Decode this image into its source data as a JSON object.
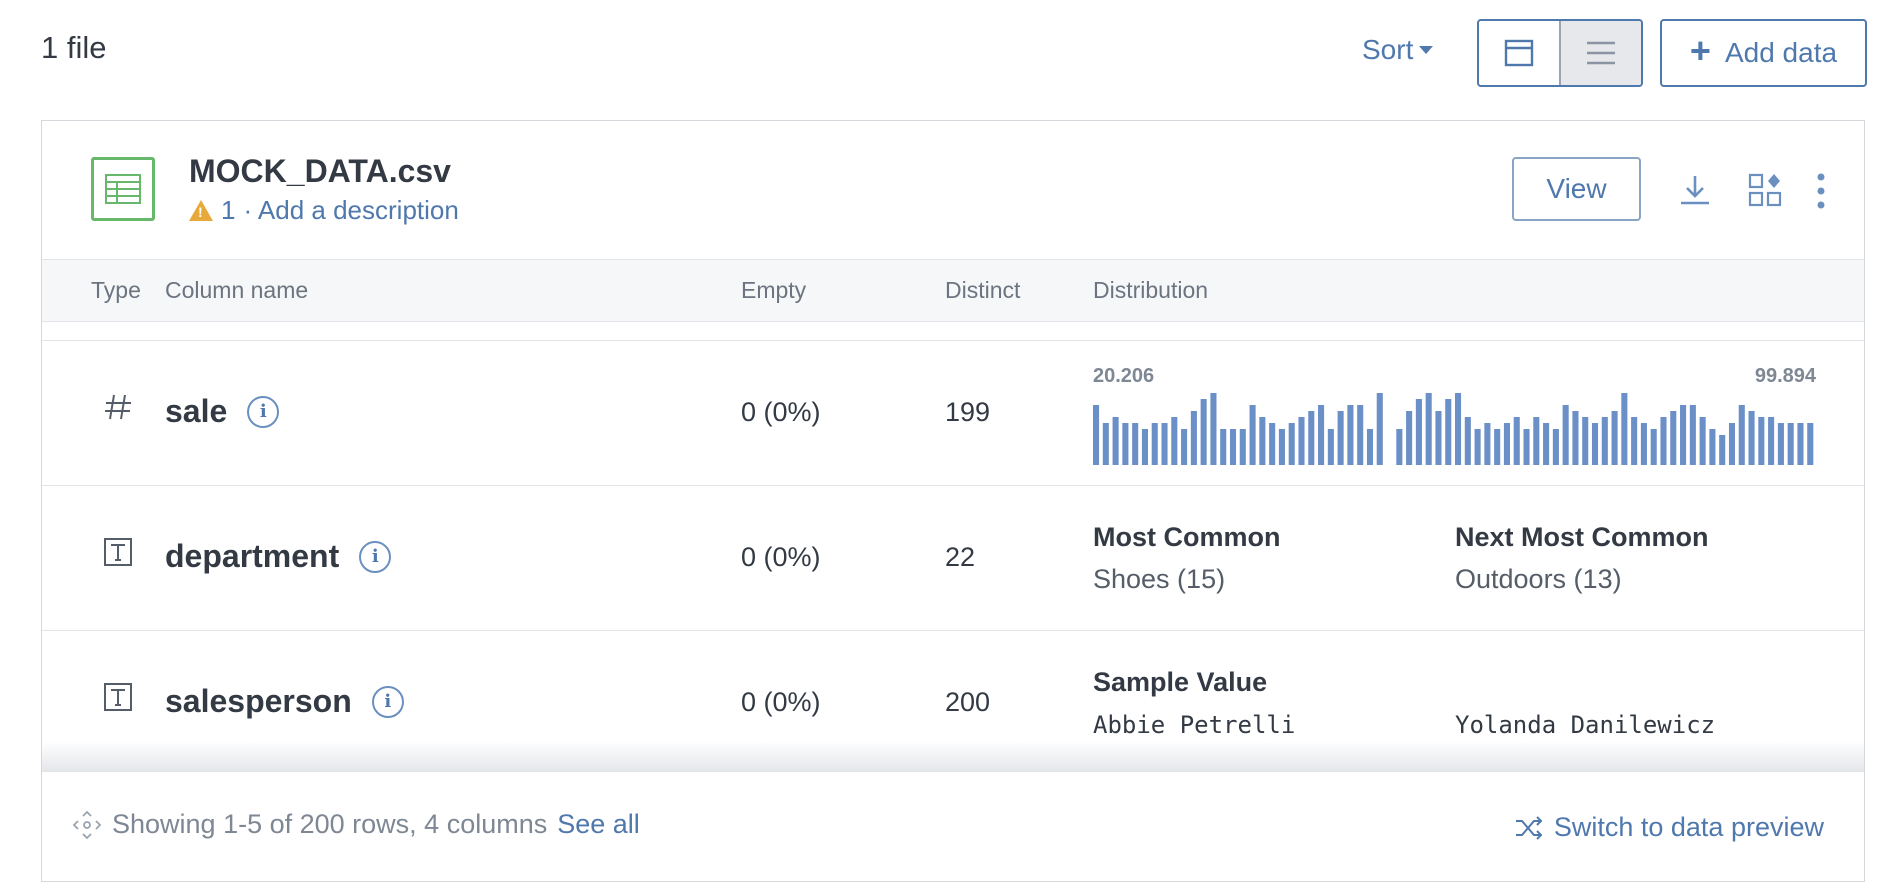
{
  "file_count": "1 file",
  "toolbar": {
    "sort_label": "Sort",
    "add_data_label": "Add data"
  },
  "file": {
    "name": "MOCK_DATA.csv",
    "warning_count": "1",
    "description_link": "· Add a description",
    "view_label": "View"
  },
  "columns_header": {
    "type": "Type",
    "column_name": "Column name",
    "empty": "Empty",
    "distinct": "Distinct",
    "distribution": "Distribution"
  },
  "rows": [
    {
      "type_icon": "number-type-icon",
      "name": "sale",
      "empty": "0 (0%)",
      "distinct": "199",
      "hist_min": "20.206",
      "hist_max": "99.894",
      "hist_values": [
        10,
        7,
        8,
        7,
        7,
        6,
        7,
        7,
        8,
        6,
        9,
        11,
        12,
        6,
        6,
        6,
        10,
        8,
        7,
        6,
        7,
        8,
        9,
        10,
        6,
        9,
        10,
        10,
        6,
        12,
        0,
        6,
        9,
        11,
        12,
        9,
        11,
        12,
        8,
        6,
        7,
        6,
        7,
        8,
        6,
        8,
        7,
        6,
        10,
        9,
        8,
        7,
        8,
        9,
        12,
        8,
        7,
        6,
        8,
        9,
        10,
        10,
        8,
        6,
        5,
        7,
        10,
        9,
        8,
        8,
        7,
        7,
        7,
        7
      ]
    },
    {
      "type_icon": "text-type-icon",
      "name": "department",
      "empty": "0 (0%)",
      "distinct": "22",
      "most_common_label": "Most Common",
      "most_common_value": "Shoes (15)",
      "next_common_label": "Next Most Common",
      "next_common_value": "Outdoors (13)"
    },
    {
      "type_icon": "text-type-icon",
      "name": "salesperson",
      "empty": "0 (0%)",
      "distinct": "200",
      "sample_label": "Sample Value",
      "sample_value_1": "Abbie Petrelli",
      "sample_value_2": "Yolanda Danilewicz"
    }
  ],
  "footer": {
    "showing": "Showing 1-5 of 200 rows, 4 columns",
    "see_all": "See all",
    "switch_preview": "Switch to data preview"
  },
  "colors": {
    "accent": "#4f78ad",
    "bar": "#6b8fc7",
    "file_icon": "#68b86b",
    "warning": "#e8a93b"
  }
}
